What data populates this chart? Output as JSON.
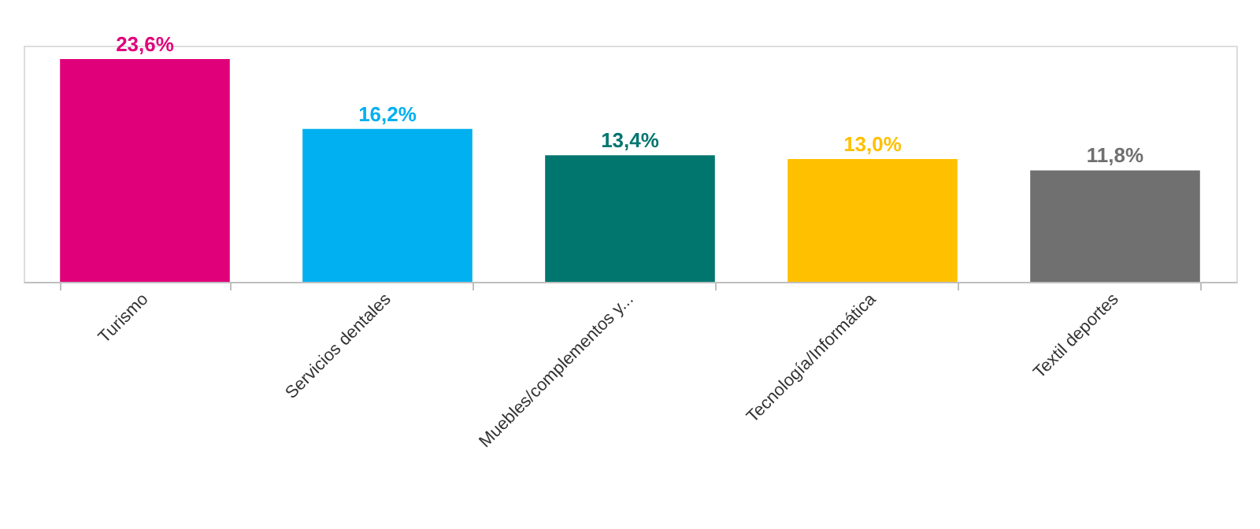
{
  "chart_data": {
    "type": "bar",
    "categories": [
      "Turismo",
      "Servicios dentales",
      "Muebles/complementos y...",
      "Tecnología/Informática",
      "Textil deportes"
    ],
    "values": [
      23.6,
      16.2,
      13.4,
      13.0,
      11.8
    ],
    "value_labels": [
      "23,6%",
      "16,2%",
      "13,4%",
      "13,0%",
      "11,8%"
    ],
    "colors": [
      "#e0007a",
      "#00b0f0",
      "#00766f",
      "#ffc000",
      "#707070"
    ],
    "tick_labels": "x"
  }
}
